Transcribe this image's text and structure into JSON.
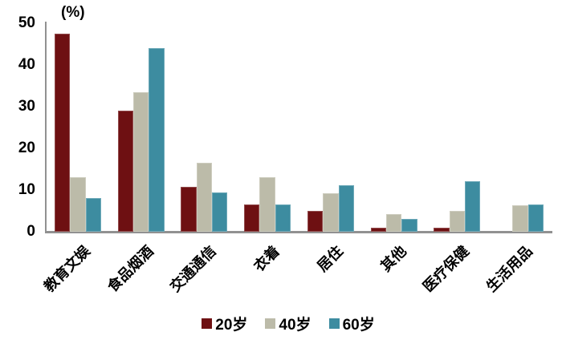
{
  "chart_data": {
    "type": "bar",
    "title": "",
    "unit_label": "(%)",
    "categories": [
      "教育文娱",
      "食品烟酒",
      "交通通信",
      "衣着",
      "居住",
      "其他",
      "医疗保健",
      "生活用品"
    ],
    "series": [
      {
        "name": "20岁",
        "color": "#6E1012",
        "values": [
          47.5,
          29,
          10.7,
          6.5,
          5,
          1,
          1,
          0
        ]
      },
      {
        "name": "40岁",
        "color": "#BCBBA9",
        "values": [
          13,
          33.5,
          16.5,
          13,
          9.3,
          4.3,
          5,
          6.3
        ]
      },
      {
        "name": "60岁",
        "color": "#3D8CA0",
        "values": [
          8,
          44,
          9.5,
          6.5,
          11.2,
          3,
          12.2,
          6.6
        ]
      }
    ],
    "ylim": [
      0,
      50
    ],
    "yticks": [
      0,
      10,
      20,
      30,
      40,
      50
    ],
    "grid": false,
    "legend_position": "bottom",
    "axis_color": "#919191"
  }
}
